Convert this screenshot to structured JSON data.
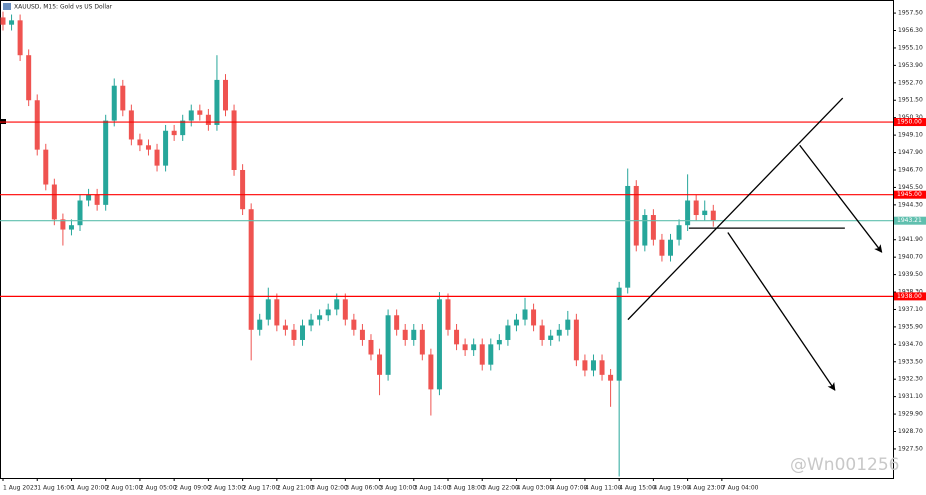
{
  "chart_data": {
    "type": "candlestick",
    "title": "XAUUSD, M15: Gold vs US Dollar",
    "watermark": "@Wn001256",
    "up_color": "#26a69a",
    "down_color": "#ef5350",
    "x": [
      0,
      4,
      8,
      12,
      16,
      20,
      24,
      28,
      32,
      36,
      40,
      44,
      48,
      52,
      56,
      60,
      64,
      68,
      72,
      76,
      80,
      84,
      88,
      92,
      96,
      100,
      104,
      108,
      112,
      116,
      120,
      124,
      128,
      132,
      136,
      140,
      144,
      148,
      152,
      156,
      160,
      164,
      168,
      172,
      176,
      180,
      184,
      188,
      192,
      196,
      200,
      204,
      208,
      212,
      216,
      220,
      224,
      228,
      232,
      236,
      240,
      244,
      248,
      252,
      256,
      260,
      264,
      268,
      272,
      276,
      280,
      284,
      288,
      292,
      296,
      300,
      304,
      308,
      312,
      316,
      320,
      324,
      328,
      332
    ],
    "open": [
      1957.2,
      1956.7,
      1957.0,
      1954.6,
      1951.5,
      1948.1,
      1945.7,
      1943.3,
      1942.6,
      1942.9,
      1944.6,
      1945.0,
      1944.3,
      1950.1,
      1952.5,
      1950.8,
      1948.8,
      1948.4,
      1948.1,
      1947.0,
      1949.4,
      1949.1,
      1950.1,
      1950.8,
      1950.5,
      1949.8,
      1952.9,
      1950.8,
      1946.7,
      1944.0,
      1935.7,
      1936.4,
      1937.8,
      1936.0,
      1935.7,
      1935.0,
      1936.0,
      1936.4,
      1936.7,
      1937.1,
      1937.8,
      1936.4,
      1935.7,
      1935.0,
      1934.0,
      1932.6,
      1936.7,
      1935.7,
      1935.0,
      1935.7,
      1934.0,
      1931.6,
      1937.8,
      1935.7,
      1934.7,
      1934.3,
      1934.7,
      1933.3,
      1934.7,
      1935.0,
      1936.0,
      1936.4,
      1937.1,
      1936.0,
      1935.0,
      1935.3,
      1935.7,
      1936.4,
      1933.6,
      1932.9,
      1933.6,
      1932.6,
      1932.2,
      1938.6,
      1945.6,
      1941.5,
      1943.6,
      1941.9,
      1940.8,
      1941.9,
      1942.9,
      1944.6,
      1943.6,
      1943.9
    ],
    "high": [
      1957.6,
      1957.4,
      1957.4,
      1955.0,
      1951.9,
      1948.5,
      1946.1,
      1943.7,
      1943.3,
      1945.0,
      1945.4,
      1945.4,
      1950.5,
      1953.0,
      1952.9,
      1951.2,
      1949.2,
      1948.8,
      1948.5,
      1949.8,
      1949.8,
      1950.5,
      1951.2,
      1951.2,
      1950.9,
      1954.6,
      1953.3,
      1951.2,
      1947.1,
      1944.4,
      1936.8,
      1938.6,
      1938.2,
      1936.4,
      1936.1,
      1936.4,
      1936.8,
      1937.1,
      1937.5,
      1938.2,
      1938.2,
      1936.8,
      1936.1,
      1935.4,
      1934.4,
      1937.1,
      1937.1,
      1936.1,
      1936.1,
      1936.1,
      1934.4,
      1938.3,
      1938.2,
      1936.1,
      1935.1,
      1935.1,
      1935.1,
      1935.1,
      1935.4,
      1936.4,
      1936.8,
      1937.9,
      1937.5,
      1936.4,
      1935.7,
      1936.1,
      1937.0,
      1936.8,
      1934.0,
      1934.0,
      1934.0,
      1933.0,
      1939.0,
      1946.8,
      1946.0,
      1944.0,
      1944.0,
      1942.3,
      1942.3,
      1943.3,
      1946.4,
      1945.0,
      1944.6,
      1944.3
    ],
    "low": [
      1956.3,
      1956.3,
      1954.2,
      1951.1,
      1947.7,
      1945.3,
      1942.9,
      1941.5,
      1942.2,
      1942.5,
      1944.2,
      1943.9,
      1943.9,
      1949.7,
      1950.4,
      1948.4,
      1948.0,
      1947.7,
      1946.6,
      1946.6,
      1948.7,
      1948.7,
      1949.7,
      1950.1,
      1949.4,
      1949.4,
      1950.4,
      1946.3,
      1943.6,
      1933.6,
      1935.3,
      1936.0,
      1935.6,
      1935.3,
      1934.6,
      1934.6,
      1935.6,
      1936.0,
      1936.3,
      1936.7,
      1936.0,
      1935.3,
      1934.6,
      1933.6,
      1931.2,
      1932.2,
      1935.3,
      1934.6,
      1934.6,
      1933.6,
      1929.8,
      1931.2,
      1935.3,
      1934.3,
      1933.9,
      1933.9,
      1932.9,
      1932.9,
      1934.3,
      1934.6,
      1935.6,
      1936.0,
      1935.6,
      1934.6,
      1934.6,
      1934.9,
      1935.3,
      1933.2,
      1932.5,
      1932.5,
      1932.2,
      1930.4,
      1925.6,
      1938.2,
      1941.1,
      1941.1,
      1941.5,
      1940.4,
      1940.4,
      1941.5,
      1942.5,
      1943.2,
      1943.2,
      1942.8
    ],
    "close": [
      1956.7,
      1957.0,
      1954.6,
      1951.5,
      1948.1,
      1945.7,
      1943.3,
      1942.6,
      1942.9,
      1944.6,
      1945.0,
      1944.3,
      1950.1,
      1952.5,
      1950.8,
      1948.8,
      1948.4,
      1948.1,
      1947.0,
      1949.4,
      1949.1,
      1950.1,
      1950.8,
      1950.5,
      1949.8,
      1952.9,
      1950.8,
      1946.7,
      1944.0,
      1935.7,
      1936.4,
      1937.8,
      1936.0,
      1935.7,
      1935.0,
      1936.0,
      1936.4,
      1936.7,
      1937.1,
      1937.8,
      1936.4,
      1935.7,
      1935.0,
      1934.0,
      1932.6,
      1936.7,
      1935.7,
      1935.0,
      1935.7,
      1934.0,
      1931.6,
      1937.8,
      1935.7,
      1934.7,
      1934.3,
      1934.7,
      1933.3,
      1934.7,
      1935.0,
      1936.0,
      1936.4,
      1937.1,
      1936.0,
      1935.0,
      1935.3,
      1935.7,
      1936.4,
      1933.6,
      1932.9,
      1933.6,
      1932.6,
      1932.2,
      1938.6,
      1945.6,
      1941.5,
      1943.6,
      1941.9,
      1940.8,
      1941.9,
      1942.9,
      1944.6,
      1943.6,
      1943.9,
      1943.2
    ],
    "xlim": [
      -1.4,
      416
    ],
    "xticks": [
      {
        "value": 0,
        "label": "1 Aug 2023"
      },
      {
        "value": 16,
        "label": "1 Aug 16:00"
      },
      {
        "value": 32,
        "label": "1 Aug 20:00"
      },
      {
        "value": 48,
        "label": "2 Aug 01:00"
      },
      {
        "value": 64,
        "label": "2 Aug 05:00"
      },
      {
        "value": 80,
        "label": "2 Aug 09:00"
      },
      {
        "value": 96,
        "label": "2 Aug 13:00"
      },
      {
        "value": 112,
        "label": "2 Aug 17:00"
      },
      {
        "value": 128,
        "label": "2 Aug 21:00"
      },
      {
        "value": 144,
        "label": "3 Aug 02:00"
      },
      {
        "value": 160,
        "label": "3 Aug 06:00"
      },
      {
        "value": 176,
        "label": "3 Aug 10:00"
      },
      {
        "value": 192,
        "label": "3 Aug 14:00"
      },
      {
        "value": 208,
        "label": "3 Aug 18:00"
      },
      {
        "value": 224,
        "label": "3 Aug 22:00"
      },
      {
        "value": 240,
        "label": "4 Aug 03:00"
      },
      {
        "value": 256,
        "label": "4 Aug 07:00"
      },
      {
        "value": 272,
        "label": "4 Aug 11:00"
      },
      {
        "value": 288,
        "label": "4 Aug 15:00"
      },
      {
        "value": 304,
        "label": "4 Aug 19:00"
      },
      {
        "value": 320,
        "label": "4 Aug 23:00"
      },
      {
        "value": 336,
        "label": "7 Aug 04:00"
      }
    ],
    "ylim": [
      1925.5,
      1958.4
    ],
    "yticks": [
      {
        "value": 1957.5,
        "label": "1957.50"
      },
      {
        "value": 1956.3,
        "label": "1956.30"
      },
      {
        "value": 1955.1,
        "label": "1955.10"
      },
      {
        "value": 1953.9,
        "label": "1953.90"
      },
      {
        "value": 1952.7,
        "label": "1952.70"
      },
      {
        "value": 1951.5,
        "label": "1951.50"
      },
      {
        "value": 1950.3,
        "label": "1950.30"
      },
      {
        "value": 1949.1,
        "label": "1949.10"
      },
      {
        "value": 1947.9,
        "label": "1947.90"
      },
      {
        "value": 1946.7,
        "label": "1946.70"
      },
      {
        "value": 1945.5,
        "label": "1945.50"
      },
      {
        "value": 1944.3,
        "label": "1944.30"
      },
      {
        "value": 1943.1,
        "label": "1943.10"
      },
      {
        "value": 1941.9,
        "label": "1941.90"
      },
      {
        "value": 1940.7,
        "label": "1940.70"
      },
      {
        "value": 1939.5,
        "label": "1939.50"
      },
      {
        "value": 1938.3,
        "label": "1938.30"
      },
      {
        "value": 1937.1,
        "label": "1937.10"
      },
      {
        "value": 1935.9,
        "label": "1935.90"
      },
      {
        "value": 1934.7,
        "label": "1934.70"
      },
      {
        "value": 1933.5,
        "label": "1933.50"
      },
      {
        "value": 1932.3,
        "label": "1932.30"
      },
      {
        "value": 1931.1,
        "label": "1931.10"
      },
      {
        "value": 1929.9,
        "label": "1929.90"
      },
      {
        "value": 1928.7,
        "label": "1928.70"
      },
      {
        "value": 1927.5,
        "label": "1927.50"
      }
    ],
    "hlines": [
      {
        "value": 1950,
        "label": "1950.00",
        "color": "#ff0000"
      },
      {
        "value": 1945,
        "label": "1945.00",
        "color": "#ff0000"
      },
      {
        "value": 1943.21,
        "label": "1943.21",
        "color": "#5fbfae"
      },
      {
        "value": 1938,
        "label": "1938.00",
        "color": "#ff0000"
      }
    ],
    "trendlines": [
      {
        "x": [
          292.1,
          392.5
        ],
        "y": [
          1936.4,
          1951.65
        ],
        "arrow": false
      },
      {
        "x": [
          320.6,
          393.5
        ],
        "y": [
          1942.7,
          1942.7
        ],
        "arrow": false
      },
      {
        "x": [
          372.4,
          410.7
        ],
        "y": [
          1948.4,
          1941.05
        ],
        "arrow": true
      },
      {
        "x": [
          338.8,
          388.8
        ],
        "y": [
          1942.4,
          1931.55
        ],
        "arrow": true
      }
    ]
  }
}
